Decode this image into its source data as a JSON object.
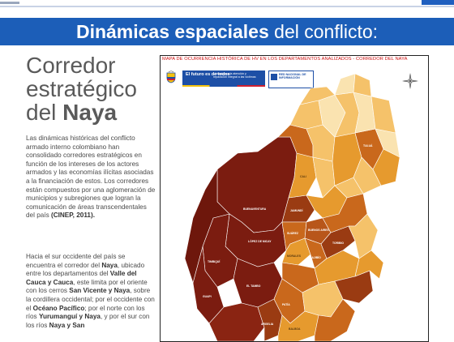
{
  "header": {
    "title_bold": "Dinámicas espaciales",
    "title_rest": "del conflicto:"
  },
  "section": {
    "title_line1": "Corredor",
    "title_line2": "estratégico",
    "title_line3_pre": "del",
    "title_line3_bold": "Naya"
  },
  "paragraph1": {
    "text": "Las dinámicas históricas del conflicto armado interno colombiano han consolidado corredores estratégicos en función de los intereses de los actores armados y las economías ilícitas asociadas a la financiación de estos. Los corredores están compuestos por una aglomeración de municipios y subregiones que logran la comunicación de áreas transcendentales del país",
    "citation": "(CINEP, 2011)."
  },
  "paragraph2": {
    "t1": "Hacia el sur occidente del país se encuentra el corredor del",
    "b1": "Naya",
    "t2": ", ubicado entre los departamentos del",
    "b2": "Valle del Cauca y Cauca",
    "t3": ", este limita por el oriente con los cerros",
    "b3": "San Vicente y Naya",
    "t4": ", sobre la cordillera occidental; por el occidente con el",
    "b4": "Océano Pacífico",
    "t5": "; por el norte con los ríos",
    "b5": "Yurumanguí y Naya",
    "t6": ", y por el sur con los ríos",
    "b6": "Naya y San"
  },
  "map": {
    "title": "MAPA DE OCURRENCIA HISTÓRICA DE HV EN LOS DEPARTAMENTOS ANALIZADOS - CORREDOR DEL NAYA",
    "logo1": "El futuro es de todos",
    "logo2": "Unidad para la atención y reparación integral a las víctimas",
    "logo3": "RED NACIONAL DE INFORMACIÓN",
    "colors": {
      "dark": "#7b1c10",
      "brown": "#9a3b12",
      "orange": "#c9681c",
      "amber": "#e69a2e",
      "light": "#f5c26a",
      "pale": "#fae3b0"
    },
    "labels": {
      "buenaventura": "BUENAVENTURA",
      "lopez": "LÓPEZ DE MICAY",
      "timbiqui": "TIMBIQUÍ",
      "guapi": "GUAPI",
      "eltambo": "EL TAMBO",
      "jamundi": "JAMUNDÍ",
      "suarez": "SUÁREZ",
      "buenos": "BUENOS AIRES",
      "cali": "CALI",
      "tulua": "TULUÁ",
      "argelia": "ARGELIA",
      "balboa": "BALBOA",
      "toribio": "TORIBIO",
      "cajibio": "CAJIBÍO",
      "patia": "PATÍA",
      "morales": "MORALES"
    }
  }
}
